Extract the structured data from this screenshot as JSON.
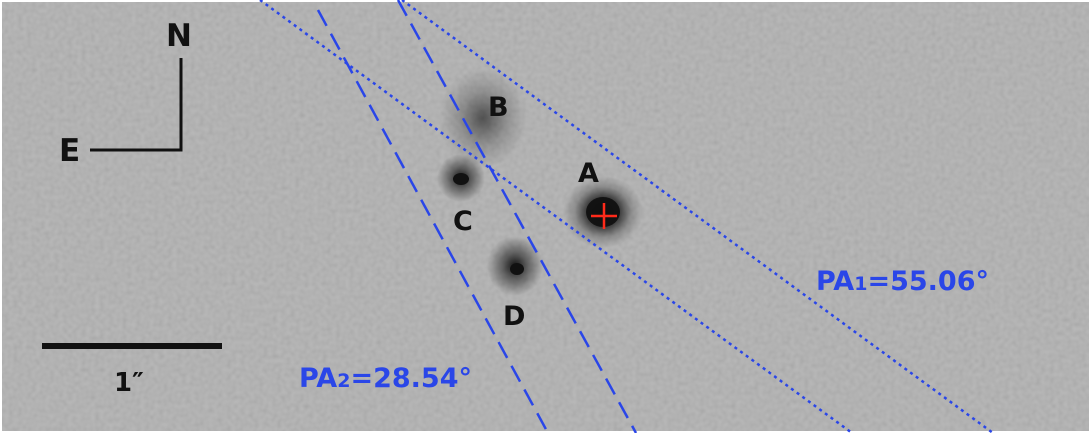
{
  "image": {
    "background_color": "#b0b0b0",
    "source_color": "#111111",
    "label_color": "#111111",
    "line_color": "#2a46e8",
    "marker_color": "#ff2a1a"
  },
  "compass": {
    "north_label": "N",
    "east_label": "E"
  },
  "sources": [
    {
      "id": "A",
      "label": "A"
    },
    {
      "id": "B",
      "label": "B"
    },
    {
      "id": "C",
      "label": "C"
    },
    {
      "id": "D",
      "label": "D"
    }
  ],
  "scale_bar": {
    "label": "1″",
    "length_arcsec": 1
  },
  "position_angles": {
    "pa1": {
      "prefix": "PA",
      "subscript": "1",
      "value_text": "=55.06°",
      "value_deg": 55.06,
      "line_style": "dotted"
    },
    "pa2": {
      "prefix": "PA",
      "subscript": "2",
      "value_text": "=28.54°",
      "value_deg": 28.54,
      "line_style": "dashed"
    }
  }
}
